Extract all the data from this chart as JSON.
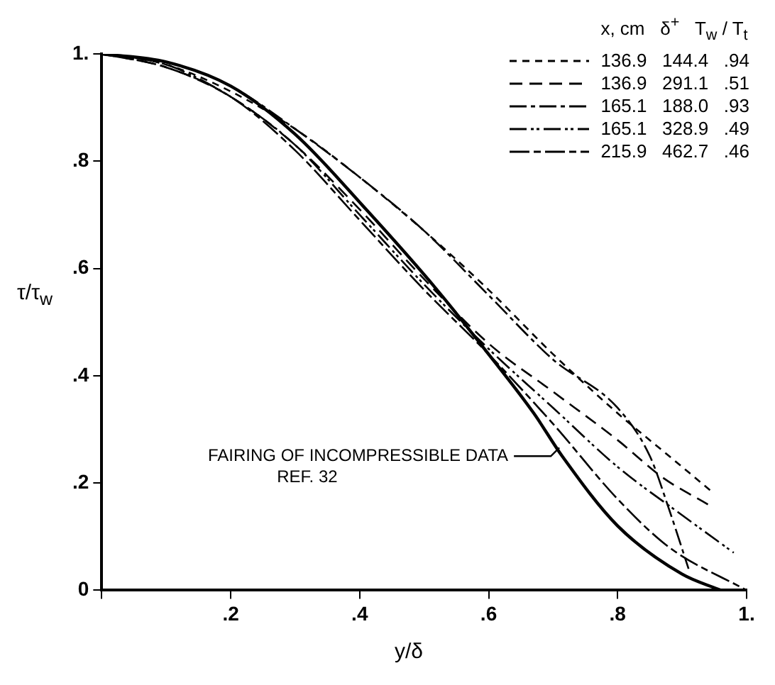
{
  "chart_data": {
    "type": "line",
    "xlabel": "y/δ",
    "ylabel": "τ/τ$_{w}$",
    "legend_title": "x, cm   δ$^{+}$   T$_{w}$ / T$_{t}$",
    "legend": "top right",
    "grid": false,
    "marker": "none",
    "xlim": [
      0,
      1
    ],
    "ylim": [
      0,
      1
    ],
    "xticks": [
      {
        "value": 0,
        "label": null
      },
      {
        "value": 0.2,
        "label": ".2"
      },
      {
        "value": 0.4,
        "label": ".4"
      },
      {
        "value": 0.6,
        "label": ".6"
      },
      {
        "value": 0.8,
        "label": ".8"
      },
      {
        "value": 1,
        "label": "1."
      }
    ],
    "yticks": [
      0,
      {
        "value": 0.2,
        "label": ".2"
      },
      {
        "value": 0.4,
        "label": ".4"
      },
      {
        "value": 0.6,
        "label": ".6"
      },
      {
        "value": 0.8,
        "label": ".8"
      },
      {
        "value": 1,
        "label": "1."
      }
    ],
    "annotations": [
      {
        "text": "FAIRING OF INCOMPRESSIBLE DATA\nREF. 32",
        "x": 0.714,
        "y": 0.25
      }
    ],
    "series": [
      {
        "name": "136.9   144.4   .94",
        "color": "#000000",
        "line_style": "dashed",
        "x": [
          0,
          0.1,
          0.2,
          0.3,
          0.4,
          0.5,
          0.6,
          0.7,
          0.8,
          0.88,
          0.95
        ],
        "values": [
          1,
          0.98,
          0.93,
          0.86,
          0.77,
          0.67,
          0.56,
          0.44,
          0.33,
          0.25,
          0.18
        ]
      },
      {
        "name": "136.9   291.1   .51",
        "color": "#000000",
        "line_style": "dashed",
        "x": [
          0,
          0.1,
          0.2,
          0.3,
          0.4,
          0.5,
          0.6,
          0.7,
          0.8,
          0.87,
          0.94
        ],
        "values": [
          1,
          0.975,
          0.92,
          0.83,
          0.71,
          0.58,
          0.46,
          0.37,
          0.28,
          0.21,
          0.16
        ]
      },
      {
        "name": "165.1   188.0   .93",
        "color": "#000000",
        "line_style": "dashed",
        "x": [
          0,
          0.1,
          0.2,
          0.3,
          0.4,
          0.5,
          0.6,
          0.7,
          0.8,
          0.85,
          0.88,
          0.91
        ],
        "values": [
          1,
          0.985,
          0.94,
          0.86,
          0.77,
          0.67,
          0.55,
          0.43,
          0.34,
          0.25,
          0.15,
          0.04
        ]
      },
      {
        "name": "165.1   328.9   .49",
        "color": "#000000",
        "line_style": "dashed",
        "x": [
          0,
          0.1,
          0.2,
          0.3,
          0.4,
          0.5,
          0.6,
          0.7,
          0.8,
          0.9,
          0.98
        ],
        "values": [
          1,
          0.98,
          0.92,
          0.83,
          0.7,
          0.57,
          0.45,
          0.34,
          0.23,
          0.14,
          0.07
        ]
      },
      {
        "name": "215.9   462.7   .46",
        "color": "#000000",
        "line_style": "dashed",
        "x": [
          0,
          0.1,
          0.2,
          0.3,
          0.4,
          0.5,
          0.6,
          0.7,
          0.8,
          0.88,
          1
        ],
        "values": [
          1,
          0.975,
          0.92,
          0.82,
          0.69,
          0.56,
          0.44,
          0.31,
          0.17,
          0.08,
          0
        ]
      },
      {
        "color": "#000000",
        "line_style": "solid",
        "x": [
          0,
          0.1,
          0.2,
          0.3,
          0.41,
          0.52,
          0.6,
          0.67,
          0.714,
          0.8,
          0.9,
          0.96
        ],
        "values": [
          1,
          0.985,
          0.94,
          0.85,
          0.71,
          0.56,
          0.44,
          0.33,
          0.25,
          0.12,
          0.03,
          0
        ]
      }
    ]
  }
}
